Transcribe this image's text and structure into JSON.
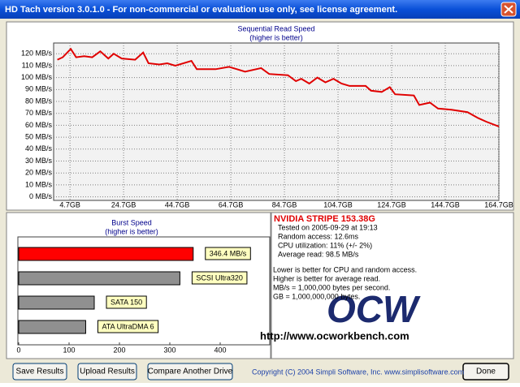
{
  "window": {
    "title": "HD Tach version 3.0.1.0  - For non-commercial or evaluation use only, see license agreement."
  },
  "chart_data": [
    {
      "type": "line",
      "title": "Sequential Read Speed",
      "subtitle": "(higher is better)",
      "x": [
        0,
        2,
        5,
        7,
        10,
        13,
        16,
        19,
        21,
        24,
        29,
        32,
        34,
        38,
        41,
        44,
        50,
        52,
        59,
        64,
        67,
        70,
        76,
        79,
        86,
        89,
        91,
        94,
        97,
        100,
        103,
        106,
        109,
        115,
        117,
        121,
        124,
        126,
        133,
        135,
        139,
        142,
        147,
        153,
        157,
        160,
        164.7
      ],
      "series": [
        {
          "color": "#e00000",
          "values": [
            115,
            117,
            124,
            117,
            118,
            117,
            122,
            116,
            120,
            116,
            115,
            121,
            112,
            111,
            112,
            110,
            114,
            107,
            107,
            109,
            107,
            105,
            108,
            103,
            102,
            97,
            99,
            95,
            100,
            96,
            99,
            95,
            93,
            93,
            89,
            88,
            92,
            86,
            85,
            77,
            79,
            74,
            73,
            71,
            66,
            63,
            59
          ]
        }
      ],
      "xlim": [
        -1.4,
        164.7
      ],
      "ylim": [
        -3,
        129
      ],
      "xticks": [
        {
          "value": 4.7,
          "label": "4.7GB"
        },
        {
          "value": 24.7,
          "label": "24.7GB"
        },
        {
          "value": 44.7,
          "label": "44.7GB"
        },
        {
          "value": 64.7,
          "label": "64.7GB"
        },
        {
          "value": 84.7,
          "label": "84.7GB"
        },
        {
          "value": 104.7,
          "label": "104.7GB"
        },
        {
          "value": 124.7,
          "label": "124.7GB"
        },
        {
          "value": 144.7,
          "label": "144.7GB"
        },
        {
          "value": 164.7,
          "label": "164.7GB"
        }
      ],
      "yticks": [
        {
          "value": 0,
          "label": "0 MB/s"
        },
        {
          "value": 10,
          "label": "10 MB/s"
        },
        {
          "value": 20,
          "label": "20 MB/s"
        },
        {
          "value": 30,
          "label": "30 MB/s"
        },
        {
          "value": 40,
          "label": "40 MB/s"
        },
        {
          "value": 50,
          "label": "50 MB/s"
        },
        {
          "value": 60,
          "label": "60 MB/s"
        },
        {
          "value": 70,
          "label": "70 MB/s"
        },
        {
          "value": 80,
          "label": "80 MB/s"
        },
        {
          "value": 90,
          "label": "90 MB/s"
        },
        {
          "value": 100,
          "label": "100 MB/s"
        },
        {
          "value": 110,
          "label": "110 MB/s"
        },
        {
          "value": 120,
          "label": "120 MB/s"
        }
      ],
      "grid": true
    },
    {
      "type": "hbar",
      "title": "Burst Speed",
      "subtitle": "(higher is better)",
      "categories": [
        null,
        "SCSI Ultra320",
        "SATA 150",
        "ATA UltraDMA 6"
      ],
      "values": [
        346.4,
        320,
        150,
        133
      ],
      "value_labels": [
        "346.4 MB/s",
        null,
        null,
        null
      ],
      "colors": [
        "#ff0000",
        "#909090",
        "#909090",
        "#909090"
      ],
      "xlim": [
        0,
        500
      ],
      "xticks": [
        0,
        100,
        200,
        300,
        400
      ]
    }
  ],
  "info": {
    "title": "NVIDIA STRIPE 153.38G",
    "lines": [
      "Tested on 2005-09-29 at 19:13",
      "Random access: 12.6ms",
      "CPU utilization: 11% (+/- 2%)",
      "Average read: 98.5 MB/s"
    ],
    "notes": [
      "Lower is better for CPU and random access.",
      "Higher is better for average read.",
      "MB/s = 1,000,000 bytes per second.",
      "GB = 1,000,000,000 bytes."
    ]
  },
  "watermark": {
    "logo": "OCW",
    "url": "http://www.ocworkbench.com"
  },
  "buttons": [
    "Save Results",
    "Upload Results",
    "Compare Another Drive",
    "Done"
  ],
  "footer": "Copyright (C) 2004 Simpli Software, Inc. www.simplisoftware.com"
}
